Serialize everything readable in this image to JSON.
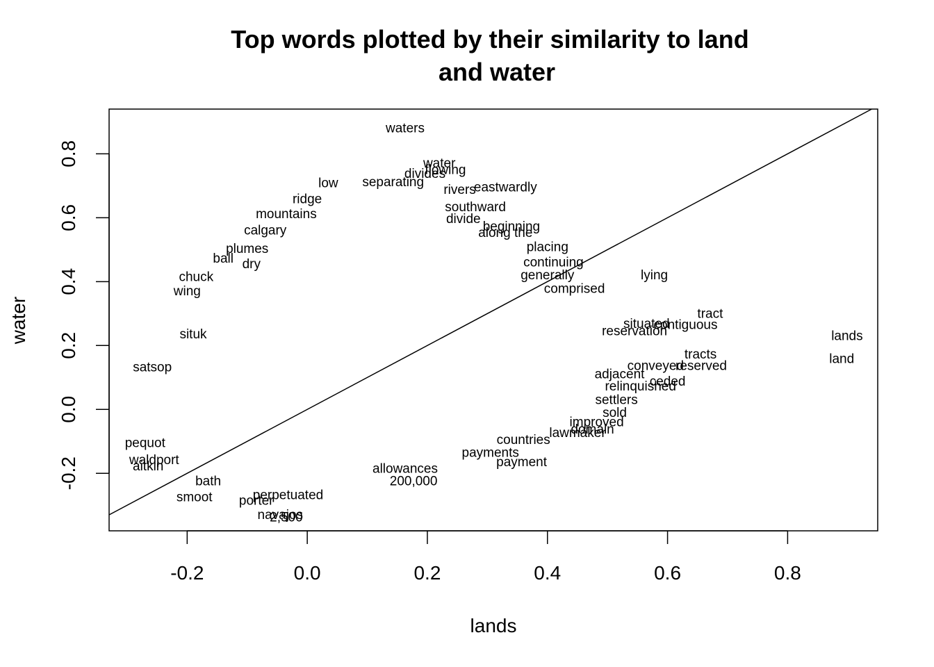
{
  "chart_data": {
    "type": "scatter",
    "title_lines": [
      "Top words plotted by their similarity to land",
      "and water"
    ],
    "xlabel": "lands",
    "ylabel": "water",
    "xlim": [
      -0.33,
      0.95
    ],
    "ylim": [
      -0.38,
      0.94
    ],
    "xticks": [
      -0.2,
      0.0,
      0.2,
      0.4,
      0.6,
      0.8
    ],
    "xtick_labels": [
      "-0.2",
      "0.0",
      "0.2",
      "0.4",
      "0.6",
      "0.8"
    ],
    "yticks": [
      -0.2,
      0.0,
      0.2,
      0.4,
      0.6,
      0.8
    ],
    "ytick_labels": [
      "-0.2",
      "0.0",
      "0.2",
      "0.4",
      "0.6",
      "0.8"
    ],
    "reference_line": {
      "intercept": 0,
      "slope": 1
    },
    "grid": false,
    "legend": "none",
    "points": [
      {
        "label": "waters",
        "x": 0.163,
        "y": 0.88
      },
      {
        "label": "water",
        "x": 0.22,
        "y": 0.77
      },
      {
        "label": "flowing",
        "x": 0.23,
        "y": 0.75
      },
      {
        "label": "divides",
        "x": 0.196,
        "y": 0.738
      },
      {
        "label": "low",
        "x": 0.035,
        "y": 0.708
      },
      {
        "label": "separating",
        "x": 0.143,
        "y": 0.712
      },
      {
        "label": "rivers",
        "x": 0.254,
        "y": 0.688
      },
      {
        "label": "eastwardly",
        "x": 0.33,
        "y": 0.695
      },
      {
        "label": "ridge",
        "x": 0.0,
        "y": 0.658
      },
      {
        "label": "southward",
        "x": 0.28,
        "y": 0.633
      },
      {
        "label": "mountains",
        "x": -0.035,
        "y": 0.612
      },
      {
        "label": "divide",
        "x": 0.26,
        "y": 0.596
      },
      {
        "label": "beginning",
        "x": 0.34,
        "y": 0.572
      },
      {
        "label": "along the",
        "x": 0.33,
        "y": 0.553
      },
      {
        "label": "calgary",
        "x": -0.07,
        "y": 0.56
      },
      {
        "label": "placing",
        "x": 0.4,
        "y": 0.508
      },
      {
        "label": "plumes",
        "x": -0.1,
        "y": 0.503
      },
      {
        "label": "ball",
        "x": -0.14,
        "y": 0.472
      },
      {
        "label": "dry",
        "x": -0.093,
        "y": 0.455
      },
      {
        "label": "continuing",
        "x": 0.41,
        "y": 0.46
      },
      {
        "label": "lying",
        "x": 0.578,
        "y": 0.42
      },
      {
        "label": "chuck",
        "x": -0.185,
        "y": 0.415
      },
      {
        "label": "generally",
        "x": 0.4,
        "y": 0.42
      },
      {
        "label": "comprised",
        "x": 0.445,
        "y": 0.378
      },
      {
        "label": "wing",
        "x": -0.2,
        "y": 0.37
      },
      {
        "label": "situated",
        "x": 0.565,
        "y": 0.268
      },
      {
        "label": "tract",
        "x": 0.671,
        "y": 0.3
      },
      {
        "label": "contiguous",
        "x": 0.63,
        "y": 0.265
      },
      {
        "label": "reservation",
        "x": 0.545,
        "y": 0.245
      },
      {
        "label": "lands",
        "x": 0.899,
        "y": 0.23
      },
      {
        "label": "tracts",
        "x": 0.655,
        "y": 0.172
      },
      {
        "label": "land",
        "x": 0.89,
        "y": 0.158
      },
      {
        "label": "reserved",
        "x": 0.656,
        "y": 0.137
      },
      {
        "label": "ceded",
        "x": 0.6,
        "y": 0.088
      },
      {
        "label": "relinquished",
        "x": 0.555,
        "y": 0.072
      },
      {
        "label": "adjacent",
        "x": 0.52,
        "y": 0.11
      },
      {
        "label": "conveyed",
        "x": 0.58,
        "y": 0.137
      },
      {
        "label": "settlers",
        "x": 0.515,
        "y": 0.03
      },
      {
        "label": "sold",
        "x": 0.512,
        "y": -0.01
      },
      {
        "label": "improved",
        "x": 0.482,
        "y": -0.04
      },
      {
        "label": "domain",
        "x": 0.475,
        "y": -0.063
      },
      {
        "label": "lawmaker",
        "x": 0.45,
        "y": -0.073
      },
      {
        "label": "countries",
        "x": 0.36,
        "y": -0.095
      },
      {
        "label": "payments",
        "x": 0.305,
        "y": -0.135
      },
      {
        "label": "payment",
        "x": 0.357,
        "y": -0.165
      },
      {
        "label": "allowances",
        "x": 0.163,
        "y": -0.185
      },
      {
        "label": "200,000",
        "x": 0.177,
        "y": -0.225
      },
      {
        "label": "perpetuated",
        "x": -0.032,
        "y": -0.268
      },
      {
        "label": "smoot",
        "x": -0.188,
        "y": -0.275
      },
      {
        "label": "porter",
        "x": -0.085,
        "y": -0.285
      },
      {
        "label": "navajos",
        "x": -0.045,
        "y": -0.33
      },
      {
        "label": "2,500",
        "x": -0.035,
        "y": -0.338
      },
      {
        "label": "waldport",
        "x": -0.255,
        "y": -0.158
      },
      {
        "label": "aitkin",
        "x": -0.265,
        "y": -0.178
      },
      {
        "label": "pequot",
        "x": -0.27,
        "y": -0.105
      },
      {
        "label": "satsop",
        "x": -0.258,
        "y": 0.132
      },
      {
        "label": "situk",
        "x": -0.19,
        "y": 0.235
      },
      {
        "label": "bath",
        "x": -0.165,
        "y": -0.225
      }
    ]
  }
}
